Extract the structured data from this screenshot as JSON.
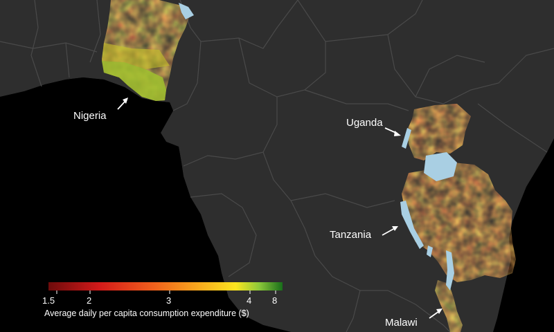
{
  "map": {
    "colors": {
      "ocean": "#000000",
      "land": "#2e2e2e",
      "border": "#4a4a4a",
      "water": "#a9cfe3"
    },
    "labels": {
      "nigeria": "Nigeria",
      "uganda": "Uganda",
      "tanzania": "Tanzania",
      "malawi": "Malawi"
    },
    "legend": {
      "title": "Average daily per capita consumption expenditure ($)",
      "ticks": [
        "1.5",
        "2",
        "3",
        "4",
        "8"
      ],
      "gradient_colors": [
        "#6e0b0b",
        "#d41a1a",
        "#f0601c",
        "#f7a11d",
        "#fbe51f",
        "#8cc83a",
        "#186e1a"
      ]
    }
  }
}
